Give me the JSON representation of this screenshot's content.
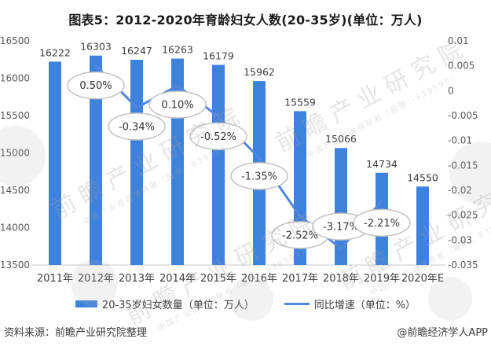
{
  "chart_data": {
    "type": "bar",
    "title": "图表5：2012-2020年育龄妇女人数(20-35岁)(单位：万人)",
    "categories": [
      "2011年",
      "2012年",
      "2013年",
      "2014年",
      "2015年",
      "2016年",
      "2017年",
      "2018年",
      "2019年",
      "2020年E"
    ],
    "series": [
      {
        "name": "20-35岁妇女数量（单位：万人）",
        "kind": "bar",
        "axis": "left",
        "color": "#3E82DC",
        "values": [
          16222,
          16303,
          16247,
          16263,
          16179,
          15962,
          15559,
          15066,
          14734,
          14550
        ]
      },
      {
        "name": "同比增速（单位：%）",
        "kind": "line",
        "axis": "right",
        "color": "#4F87DC",
        "start_index": 1,
        "values": [
          0.005,
          -0.0034,
          0.001,
          -0.0052,
          -0.0135,
          -0.0252,
          -0.0317,
          -0.0221
        ],
        "labels": [
          "0.50%",
          "-0.34%",
          "0.10%",
          "-0.52%",
          "-1.35%",
          "-2.52%",
          "-3.17%",
          "-2.21%"
        ],
        "label_dy": [
          25,
          24,
          24,
          25,
          23,
          24,
          -28,
          28
        ]
      }
    ],
    "left_axis": {
      "min": 13500,
      "max": 16500,
      "tick_labels": [
        "16500",
        "16000",
        "15500",
        "15000",
        "14500",
        "14000",
        "13500"
      ]
    },
    "right_axis": {
      "min": -0.035,
      "max": 0.01,
      "tick_labels": [
        "0.01",
        "0.005",
        "0",
        "-0.005",
        "-0.01",
        "-0.015",
        "-0.02",
        "-0.025",
        "-0.03",
        "-0.035"
      ]
    },
    "grid": false,
    "legend_position": "bottom",
    "colors": {
      "axis_text": "#595959",
      "bar_label_text": "#3d3d3d",
      "xtick_text": "#3d3d3d",
      "baseline": "#c9c9c9",
      "ellipse_fill": "#ffffff",
      "ellipse_stroke": "#c2c2c2",
      "ellipse_text": "#333333"
    }
  },
  "footer": {
    "source": "资料来源：前瞻产业研究院整理",
    "credit": "@前瞻经济学人APP"
  },
  "watermark": {
    "brand": "前瞻产业研究院",
    "tagline": "中国产业咨询领导者（股票：839599）"
  }
}
